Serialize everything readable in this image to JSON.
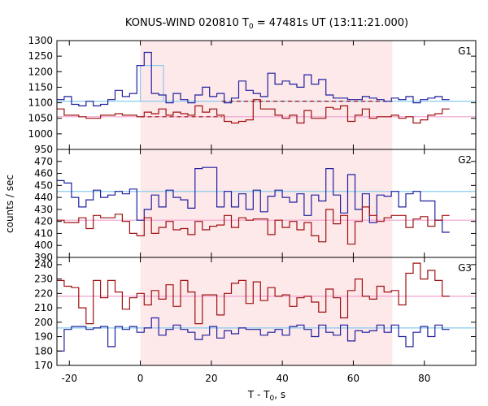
{
  "chart_data": {
    "type": "line",
    "title": "KONUS-WIND 020810 T",
    "title_sub": "0",
    "title_rest": " = 47481s UT (13:11:21.000)",
    "xlabel": "T - T",
    "xlabel_sub": "0",
    "xlabel_rest": ", s",
    "ylabel": "counts / sec",
    "xlim": [
      -23.5,
      94.5
    ],
    "xticks": [
      -20,
      0,
      20,
      40,
      60,
      80
    ],
    "shaded_interval": [
      0,
      71
    ],
    "colors": {
      "blue": "#2020a0",
      "red": "#a01010",
      "cyan": "#88ccee",
      "pink": "#f0a0d0",
      "shade": "#fde8ea"
    },
    "panels": [
      {
        "name": "G1",
        "ylim": [
          950,
          1300
        ],
        "yticks": [
          950,
          1000,
          1050,
          1100,
          1150,
          1200,
          1250,
          1300
        ],
        "bkg_blue": 1105,
        "bkg_red": 1055,
        "dashed": [
          {
            "color": "red",
            "x": [
              0,
              23
            ],
            "y": 1055
          },
          {
            "color": "red",
            "x": [
              23,
              71
            ],
            "y": 1105
          }
        ],
        "highlight": {
          "x": [
            0,
            6.5
          ],
          "y": [
            1105,
            1220
          ]
        },
        "series": [
          {
            "color": "blue",
            "values": [
              1110,
              1120,
              1095,
              1090,
              1105,
              1090,
              1095,
              1110,
              1140,
              1120,
              1130,
              1220,
              1262,
              1130,
              1125,
              1100,
              1130,
              1110,
              1100,
              1125,
              1150,
              1120,
              1130,
              1100,
              1115,
              1170,
              1140,
              1130,
              1120,
              1195,
              1160,
              1170,
              1160,
              1150,
              1190,
              1160,
              1175,
              1125,
              1115,
              1115,
              1110,
              1110,
              1120,
              1115,
              1110,
              1105,
              1115,
              1110,
              1120,
              1100,
              1110,
              1115,
              1120,
              1110
            ]
          },
          {
            "color": "red",
            "values": [
              1080,
              1060,
              1060,
              1055,
              1050,
              1050,
              1060,
              1060,
              1065,
              1060,
              1060,
              1055,
              1070,
              1065,
              1080,
              1060,
              1070,
              1065,
              1060,
              1090,
              1070,
              1080,
              1060,
              1040,
              1035,
              1040,
              1045,
              1110,
              1080,
              1080,
              1060,
              1050,
              1060,
              1035,
              1075,
              1050,
              1050,
              1085,
              1080,
              1090,
              1040,
              1060,
              1080,
              1050,
              1055,
              1055,
              1060,
              1050,
              1055,
              1035,
              1045,
              1060,
              1065,
              1080
            ]
          }
        ]
      },
      {
        "name": "G2",
        "ylim": [
          390,
          480
        ],
        "yticks": [
          390,
          400,
          410,
          420,
          430,
          440,
          450,
          460,
          470
        ],
        "bkg_blue": 445,
        "bkg_red": 421,
        "series": [
          {
            "color": "blue",
            "values": [
              454,
              452,
              440,
              432,
              438,
              446,
              440,
              442,
              445,
              443,
              447,
              421,
              430,
              442,
              432,
              446,
              440,
              438,
              431,
              464,
              465,
              465,
              432,
              445,
              432,
              443,
              430,
              446,
              428,
              441,
              446,
              440,
              436,
              443,
              425,
              442,
              437,
              464,
              442,
              427,
              459,
              430,
              443,
              419,
              442,
              441,
              445,
              432,
              443,
              445,
              437,
              437,
              421,
              411
            ]
          },
          {
            "color": "red",
            "values": [
              421,
              419,
              419,
              423,
              414,
              425,
              423,
              423,
              426,
              420,
              410,
              408,
              423,
              410,
              415,
              420,
              413,
              414,
              409,
              420,
              413,
              416,
              417,
              425,
              415,
              423,
              421,
              422,
              422,
              409,
              421,
              415,
              420,
              413,
              419,
              408,
              403,
              430,
              418,
              425,
              401,
              420,
              432,
              425,
              420,
              423,
              425,
              425,
              415,
              422,
              424,
              416,
              421,
              425
            ]
          }
        ]
      },
      {
        "name": "G3",
        "ylim": [
          170,
          245
        ],
        "yticks": [
          170,
          180,
          190,
          200,
          210,
          220,
          230,
          240
        ],
        "bkg_blue": 196,
        "bkg_red": 218,
        "series": [
          {
            "color": "blue",
            "values": [
              180,
              195,
              197,
              197,
              195,
              196,
              197,
              183,
              197,
              195,
              197,
              193,
              196,
              203,
              191,
              195,
              198,
              195,
              193,
              188,
              191,
              197,
              189,
              194,
              192,
              196,
              195,
              195,
              191,
              193,
              195,
              191,
              197,
              198,
              195,
              190,
              198,
              193,
              191,
              198,
              187,
              194,
              193,
              194,
              198,
              193,
              198,
              190,
              183,
              193,
              197,
              190,
              198,
              195
            ]
          },
          {
            "color": "red",
            "values": [
              229,
              225,
              224,
              210,
              199,
              229,
              217,
              229,
              221,
              209,
              217,
              220,
              212,
              222,
              216,
              226,
              211,
              229,
              221,
              199,
              219,
              219,
              205,
              220,
              227,
              229,
              213,
              228,
              215,
              224,
              218,
              219,
              211,
              217,
              218,
              214,
              207,
              223,
              217,
              203,
              222,
              230,
              218,
              216,
              225,
              221,
              222,
              212,
              234,
              241,
              230,
              236,
              229,
              218
            ]
          }
        ]
      }
    ]
  }
}
